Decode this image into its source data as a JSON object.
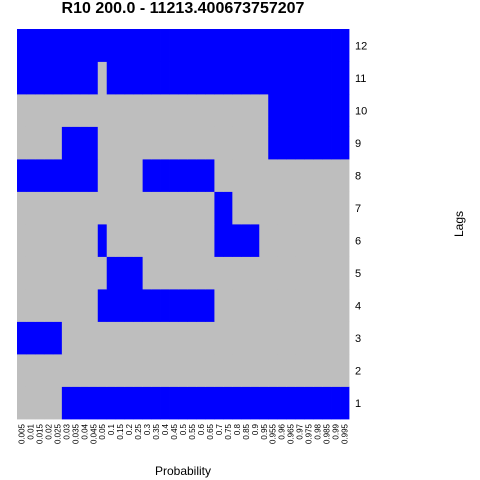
{
  "chart_data": {
    "type": "heatmap",
    "title": "R10 200.0 - 11213.400673757207",
    "xlabel": "Probability",
    "ylabel": "Lags",
    "colors": {
      "0": "#bebebe",
      "1": "#0000ff"
    },
    "x": [
      "0.005",
      "0.01",
      "0.015",
      "0.02",
      "0.025",
      "0.03",
      "0.035",
      "0.04",
      "0.045",
      "0.05",
      "0.1",
      "0.15",
      "0.2",
      "0.25",
      "0.3",
      "0.35",
      "0.4",
      "0.45",
      "0.5",
      "0.55",
      "0.6",
      "0.65",
      "0.7",
      "0.75",
      "0.8",
      "0.85",
      "0.9",
      "0.95",
      "0.955",
      "0.96",
      "0.965",
      "0.97",
      "0.975",
      "0.98",
      "0.985",
      "0.99",
      "0.995"
    ],
    "y": [
      "1",
      "2",
      "3",
      "4",
      "5",
      "6",
      "7",
      "8",
      "9",
      "10",
      "11",
      "12"
    ],
    "z": [
      [
        0,
        0,
        0,
        0,
        0,
        1,
        1,
        1,
        1,
        1,
        1,
        1,
        1,
        1,
        1,
        1,
        1,
        1,
        1,
        1,
        1,
        1,
        1,
        1,
        1,
        1,
        1,
        1,
        1,
        1,
        1,
        1,
        1,
        1,
        1,
        1,
        1
      ],
      [
        0,
        0,
        0,
        0,
        0,
        0,
        0,
        0,
        0,
        0,
        0,
        0,
        0,
        0,
        0,
        0,
        0,
        0,
        0,
        0,
        0,
        0,
        0,
        0,
        0,
        0,
        0,
        0,
        0,
        0,
        0,
        0,
        0,
        0,
        0,
        0,
        0
      ],
      [
        1,
        1,
        1,
        1,
        1,
        0,
        0,
        0,
        0,
        0,
        0,
        0,
        0,
        0,
        0,
        0,
        0,
        0,
        0,
        0,
        0,
        0,
        0,
        0,
        0,
        0,
        0,
        0,
        0,
        0,
        0,
        0,
        0,
        0,
        0,
        0,
        0
      ],
      [
        0,
        0,
        0,
        0,
        0,
        0,
        0,
        0,
        0,
        1,
        1,
        1,
        1,
        1,
        1,
        1,
        1,
        1,
        1,
        1,
        1,
        1,
        0,
        0,
        0,
        0,
        0,
        0,
        0,
        0,
        0,
        0,
        0,
        0,
        0,
        0,
        0
      ],
      [
        0,
        0,
        0,
        0,
        0,
        0,
        0,
        0,
        0,
        0,
        1,
        1,
        1,
        1,
        0,
        0,
        0,
        0,
        0,
        0,
        0,
        0,
        0,
        0,
        0,
        0,
        0,
        0,
        0,
        0,
        0,
        0,
        0,
        0,
        0,
        0,
        0
      ],
      [
        0,
        0,
        0,
        0,
        0,
        0,
        0,
        0,
        0,
        1,
        0,
        0,
        0,
        0,
        0,
        0,
        0,
        0,
        0,
        0,
        0,
        0,
        1,
        1,
        1,
        1,
        1,
        0,
        0,
        0,
        0,
        0,
        0,
        0,
        0,
        0,
        0
      ],
      [
        0,
        0,
        0,
        0,
        0,
        0,
        0,
        0,
        0,
        0,
        0,
        0,
        0,
        0,
        0,
        0,
        0,
        0,
        0,
        0,
        0,
        0,
        1,
        1,
        0,
        0,
        0,
        0,
        0,
        0,
        0,
        0,
        0,
        0,
        0,
        0,
        0
      ],
      [
        1,
        1,
        1,
        1,
        1,
        1,
        1,
        1,
        1,
        0,
        0,
        0,
        0,
        0,
        1,
        1,
        1,
        1,
        1,
        1,
        1,
        1,
        0,
        0,
        0,
        0,
        0,
        0,
        0,
        0,
        0,
        0,
        0,
        0,
        0,
        0,
        0
      ],
      [
        0,
        0,
        0,
        0,
        0,
        1,
        1,
        1,
        1,
        0,
        0,
        0,
        0,
        0,
        0,
        0,
        0,
        0,
        0,
        0,
        0,
        0,
        0,
        0,
        0,
        0,
        0,
        0,
        1,
        1,
        1,
        1,
        1,
        1,
        1,
        1,
        1
      ],
      [
        0,
        0,
        0,
        0,
        0,
        0,
        0,
        0,
        0,
        0,
        0,
        0,
        0,
        0,
        0,
        0,
        0,
        0,
        0,
        0,
        0,
        0,
        0,
        0,
        0,
        0,
        0,
        0,
        1,
        1,
        1,
        1,
        1,
        1,
        1,
        1,
        1
      ],
      [
        1,
        1,
        1,
        1,
        1,
        1,
        1,
        1,
        1,
        0,
        1,
        1,
        1,
        1,
        1,
        1,
        1,
        1,
        1,
        1,
        1,
        1,
        1,
        1,
        1,
        1,
        1,
        1,
        1,
        1,
        1,
        1,
        1,
        1,
        1,
        1,
        1
      ],
      [
        1,
        1,
        1,
        1,
        1,
        1,
        1,
        1,
        1,
        1,
        1,
        1,
        1,
        1,
        1,
        1,
        1,
        1,
        1,
        1,
        1,
        1,
        1,
        1,
        1,
        1,
        1,
        1,
        1,
        1,
        1,
        1,
        1,
        1,
        1,
        1,
        1
      ]
    ]
  }
}
